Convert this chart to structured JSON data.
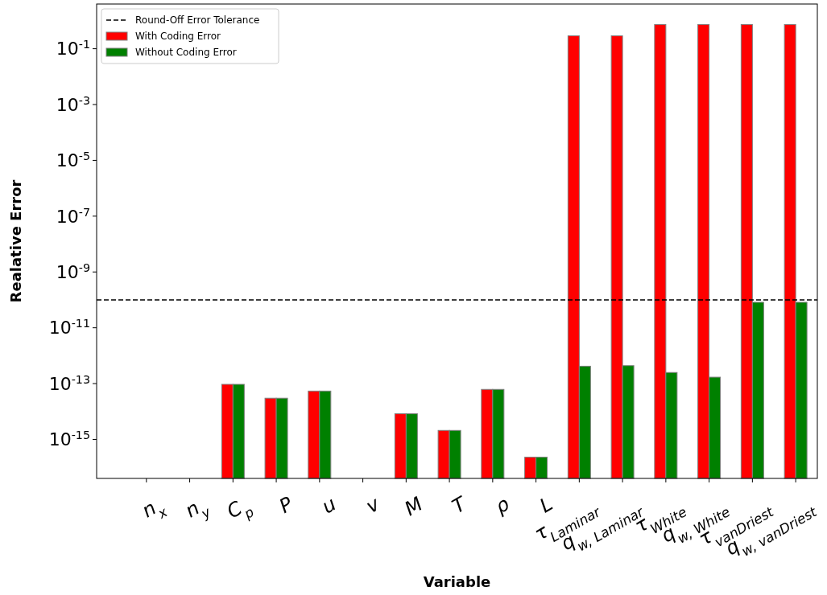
{
  "chart_data": {
    "type": "bar",
    "xlabel": "Variable",
    "ylabel": "Realative Error",
    "log": "y",
    "categories": [
      "n$_{x}$",
      "n$_{y}$",
      "C$_{p}$",
      "P",
      "u",
      "v",
      "M",
      "T",
      "ρ",
      "L",
      "τ$_{Laminar}$",
      "q$_{w, Laminar}$",
      "τ$_{White}$",
      "q$_{w, White}$",
      "τ$_{vanDriest}$",
      "q$_{w, vanDriest}$"
    ],
    "series": [
      {
        "name": "With Coding Error",
        "color": "#ff0000",
        "values": [
          null,
          null,
          9.4e-14,
          3e-14,
          5.4e-14,
          null,
          8.3e-15,
          2.1e-15,
          6.2e-14,
          2.3e-16,
          0.29,
          0.29,
          0.74,
          0.74,
          0.74,
          0.74
        ]
      },
      {
        "name": "Without Coding Error",
        "color": "#008000",
        "values": [
          null,
          null,
          9.4e-14,
          3e-14,
          5.4e-14,
          null,
          8.3e-15,
          2.1e-15,
          6.2e-14,
          2.3e-16,
          4.2e-13,
          4.4e-13,
          2.5e-13,
          1.7e-13,
          8.2e-11,
          8.2e-11
        ]
      }
    ],
    "ylim": [
      4e-17,
      4
    ],
    "yticks": [
      {
        "value": 1e-15,
        "label": "10$^{-15}$"
      },
      {
        "value": 1e-13,
        "label": "10$^{-13}$"
      },
      {
        "value": 1e-11,
        "label": "10$^{-11}$"
      },
      {
        "value": 1e-09,
        "label": "10$^{-9}$"
      },
      {
        "value": 1e-07,
        "label": "10$^{-7}$"
      },
      {
        "value": 1e-05,
        "label": "10$^{-5}$"
      },
      {
        "value": 0.001,
        "label": "10$^{-3}$"
      },
      {
        "value": 0.1,
        "label": "10$^{-1}$"
      }
    ],
    "ref_lines": [
      {
        "axis": "y",
        "value": 1e-10,
        "label": "Round-Off Error Tolerance",
        "color": "#000000",
        "line_style": "dashed"
      }
    ],
    "legend": "top left",
    "grid": false
  }
}
